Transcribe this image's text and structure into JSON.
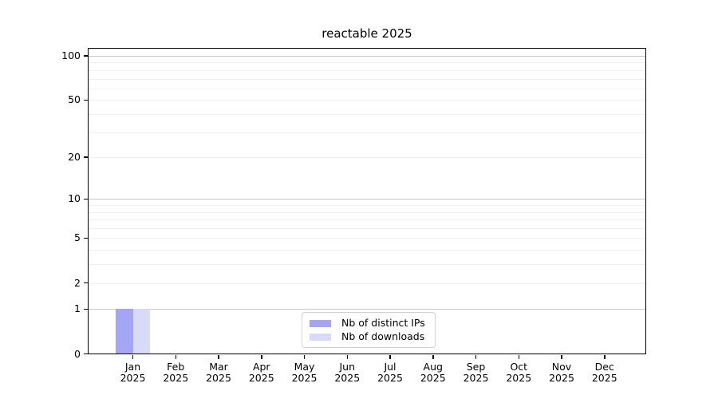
{
  "chart_data": {
    "type": "bar",
    "title": "reactable 2025",
    "x_categories": [
      {
        "month": "Jan",
        "year": "2025"
      },
      {
        "month": "Feb",
        "year": "2025"
      },
      {
        "month": "Mar",
        "year": "2025"
      },
      {
        "month": "Apr",
        "year": "2025"
      },
      {
        "month": "May",
        "year": "2025"
      },
      {
        "month": "Jun",
        "year": "2025"
      },
      {
        "month": "Jul",
        "year": "2025"
      },
      {
        "month": "Aug",
        "year": "2025"
      },
      {
        "month": "Sep",
        "year": "2025"
      },
      {
        "month": "Oct",
        "year": "2025"
      },
      {
        "month": "Nov",
        "year": "2025"
      },
      {
        "month": "Dec",
        "year": "2025"
      }
    ],
    "series": [
      {
        "name": "Nb of distinct IPs",
        "color": "#a5a5f5",
        "values": [
          1,
          0,
          0,
          0,
          0,
          0,
          0,
          0,
          0,
          0,
          0,
          0
        ]
      },
      {
        "name": "Nb of downloads",
        "color": "#d9d9f8",
        "values": [
          1,
          0,
          0,
          0,
          0,
          0,
          0,
          0,
          0,
          0,
          0,
          0
        ]
      }
    ],
    "yscale": "log1p",
    "ylim": [
      0,
      113
    ],
    "ytick_values": [
      0,
      1,
      2,
      5,
      10,
      20,
      50,
      100
    ],
    "grid_major_values": [
      1,
      10,
      100
    ],
    "grid_minor_values": [
      2,
      3,
      4,
      5,
      6,
      7,
      8,
      9,
      20,
      30,
      40,
      50,
      60,
      70,
      80,
      90
    ],
    "grid": "horizontal",
    "legend_position": "lower center",
    "colors": {
      "grid_major": "#c8c8c8",
      "grid_minor": "#f0f0f0",
      "spine": "#000000",
      "text": "#000000",
      "background": "#ffffff"
    }
  }
}
